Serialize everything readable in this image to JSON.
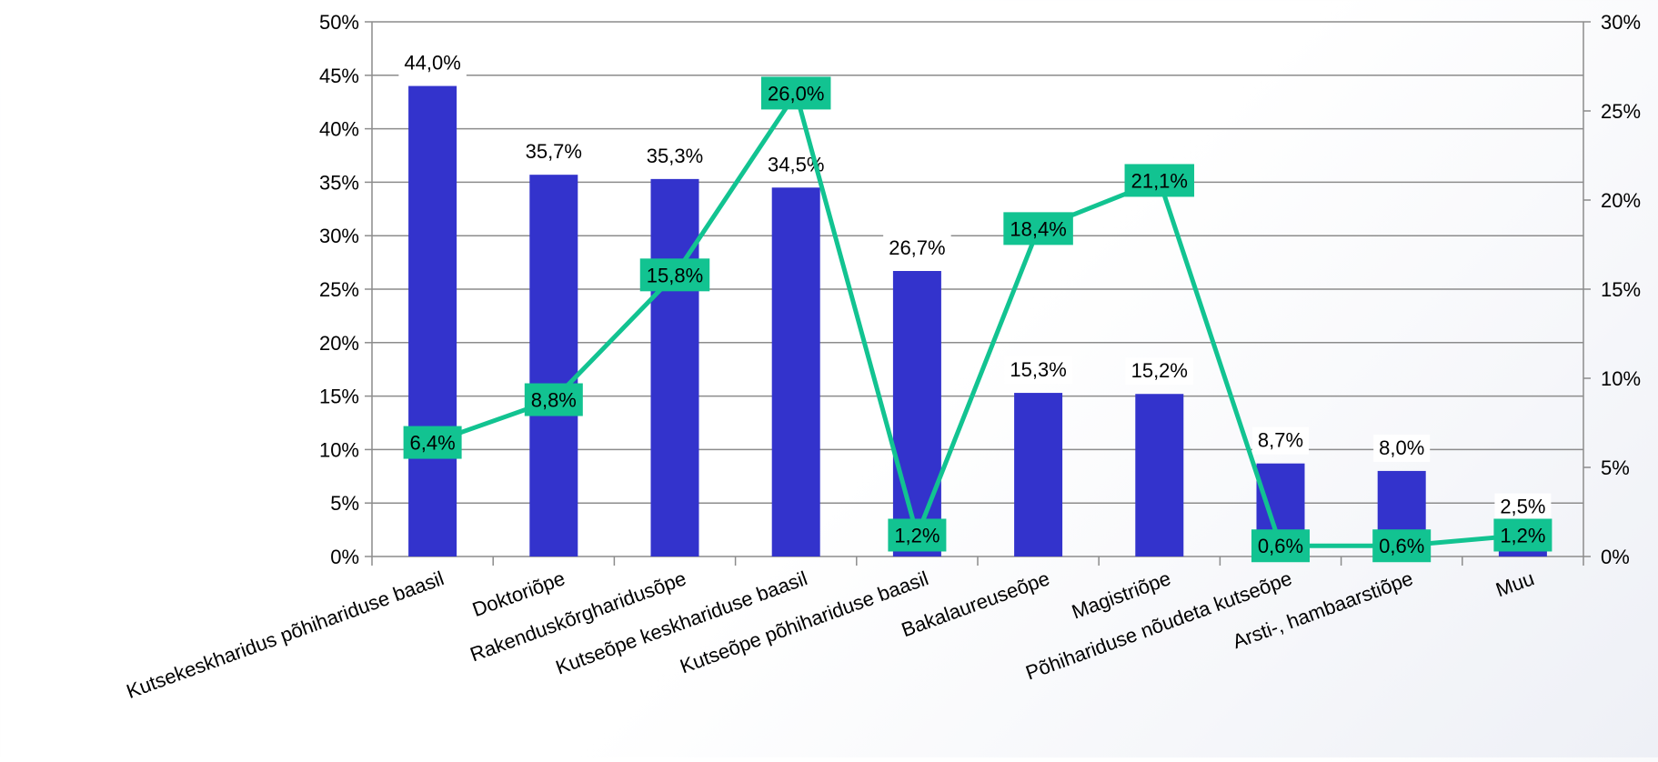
{
  "chart_data": {
    "type": "bar",
    "categories": [
      "Kutsekeskharidus põhihariduse baasil",
      "Doktoriõpe",
      "Rakenduskõrgharidusõpe",
      "Kutseõpe keskhariduse baasil",
      "Kutseõpe põhihariduse baasil",
      "Bakalaureuseõpe",
      "Magistriõpe",
      "Põhihariduse nõudeta kutseõpe",
      "Arsti-, hambaarstiõpe",
      "Muu"
    ],
    "series": [
      {
        "type": "bar",
        "axis": "left",
        "values": [
          44.0,
          35.7,
          35.3,
          34.5,
          26.7,
          15.3,
          15.2,
          8.7,
          8.0,
          2.5
        ],
        "labels": [
          "44,0%",
          "35,7%",
          "35,3%",
          "34,5%",
          "26,7%",
          "15,3%",
          "15,2%",
          "8,7%",
          "8,0%",
          "2,5%"
        ],
        "color": "#3333cc"
      },
      {
        "type": "line",
        "axis": "right",
        "values": [
          6.4,
          8.8,
          15.8,
          26.0,
          1.2,
          18.4,
          21.1,
          0.6,
          0.6,
          1.2
        ],
        "labels": [
          "6,4%",
          "8,8%",
          "15,8%",
          "26,0%",
          "1,2%",
          "18,4%",
          "21,1%",
          "0,6%",
          "0,6%",
          "1,2%"
        ],
        "color": "#12c391"
      }
    ],
    "y_left": {
      "range": [
        0,
        50
      ],
      "ticks": [
        "0%",
        "5%",
        "10%",
        "15%",
        "20%",
        "25%",
        "30%",
        "35%",
        "40%",
        "45%",
        "50%"
      ]
    },
    "y_right": {
      "range": [
        0,
        30
      ],
      "ticks": [
        "0%",
        "5%",
        "10%",
        "15%",
        "20%",
        "25%",
        "30%"
      ]
    },
    "grid": true,
    "legend": "none",
    "colors": {
      "grid": "#8c8c8c",
      "axis": "#8c8c8c",
      "text": "#000000"
    }
  }
}
